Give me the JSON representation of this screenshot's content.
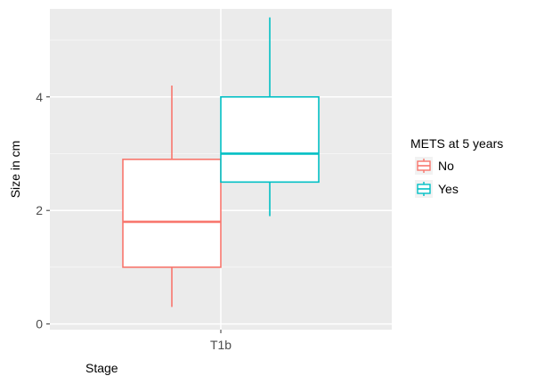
{
  "chart_data": {
    "type": "boxplot",
    "xlabel": "Stage",
    "ylabel": "Size in cm",
    "categories": [
      "T1b"
    ],
    "ylim": [
      -0.1,
      5.55
    ],
    "yticks": [
      0,
      2,
      4
    ],
    "yminor": [
      1,
      3,
      5
    ],
    "grid": true,
    "legend": {
      "title": "METS at 5 years",
      "position": "right",
      "entries": [
        "No",
        "Yes"
      ]
    },
    "series": [
      {
        "name": "No",
        "color": "#F8766D",
        "boxes": [
          {
            "category": "T1b",
            "whisker_low": 0.3,
            "q1": 1.0,
            "median": 1.8,
            "q3": 2.9,
            "whisker_high": 4.2
          }
        ]
      },
      {
        "name": "Yes",
        "color": "#00BFC4",
        "boxes": [
          {
            "category": "T1b",
            "whisker_low": 1.9,
            "q1": 2.5,
            "median": 3.0,
            "q3": 4.0,
            "whisker_high": 5.4
          }
        ]
      }
    ]
  }
}
